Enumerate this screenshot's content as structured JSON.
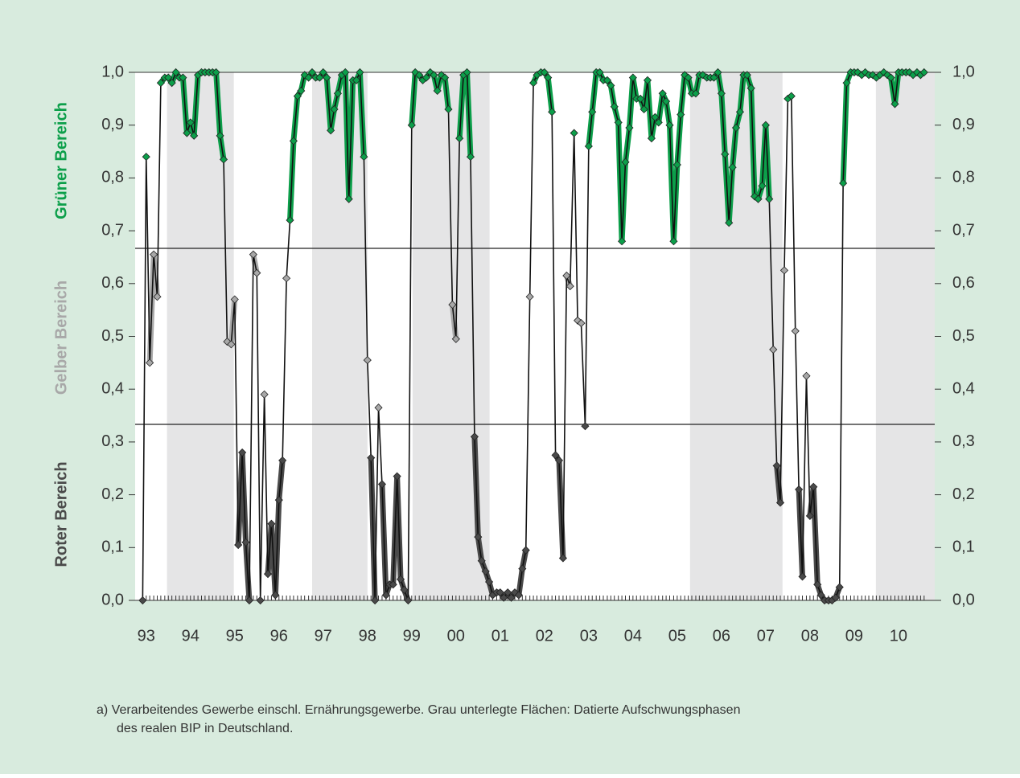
{
  "chart_data": {
    "type": "line",
    "y_labels": [
      "Roter Bereich",
      "Gelber Bereich",
      "Grüner Bereich"
    ],
    "zone_colors": [
      "#4a4a4a",
      "#a8a8a8",
      "#0c9f4a"
    ],
    "thresholds": [
      0.3333,
      0.6667
    ],
    "shaded_periods": [
      [
        1993.47,
        1994.98
      ],
      [
        1996.75,
        1998.0
      ],
      [
        1999.02,
        2000.76
      ],
      [
        2005.29,
        2007.38
      ],
      [
        2009.49,
        2010.82
      ]
    ],
    "xlim": [
      1992.75,
      2010.82
    ],
    "ylim": [
      0,
      1
    ],
    "xticks": [
      {
        "value": 1993,
        "label": "93"
      },
      {
        "value": 1994,
        "label": "94"
      },
      {
        "value": 1995,
        "label": "95"
      },
      {
        "value": 1996,
        "label": "96"
      },
      {
        "value": 1997,
        "label": "97"
      },
      {
        "value": 1998,
        "label": "98"
      },
      {
        "value": 1999,
        "label": "99"
      },
      {
        "value": 2000,
        "label": "00"
      },
      {
        "value": 2001,
        "label": "01"
      },
      {
        "value": 2002,
        "label": "02"
      },
      {
        "value": 2003,
        "label": "03"
      },
      {
        "value": 2004,
        "label": "04"
      },
      {
        "value": 2005,
        "label": "05"
      },
      {
        "value": 2006,
        "label": "06"
      },
      {
        "value": 2007,
        "label": "07"
      },
      {
        "value": 2008,
        "label": "08"
      },
      {
        "value": 2009,
        "label": "09"
      },
      {
        "value": 2010,
        "label": "10"
      }
    ],
    "yticks": [
      {
        "value": 0,
        "label": "0,0"
      },
      {
        "value": 0.1,
        "label": "0,1"
      },
      {
        "value": 0.2,
        "label": "0,2"
      },
      {
        "value": 0.3,
        "label": "0,3"
      },
      {
        "value": 0.4,
        "label": "0,4"
      },
      {
        "value": 0.5,
        "label": "0,5"
      },
      {
        "value": 0.6,
        "label": "0,6"
      },
      {
        "value": 0.7,
        "label": "0,7"
      },
      {
        "value": 0.8,
        "label": "0,8"
      },
      {
        "value": 0.9,
        "label": "0,9"
      },
      {
        "value": 1,
        "label": "1,0"
      }
    ],
    "x": [
      1992.92,
      1993.0,
      1993.08,
      1993.17,
      1993.25,
      1993.33,
      1993.42,
      1993.5,
      1993.58,
      1993.67,
      1993.75,
      1993.83,
      1993.92,
      1994.0,
      1994.08,
      1994.17,
      1994.25,
      1994.33,
      1994.42,
      1994.5,
      1994.58,
      1994.67,
      1994.75,
      1994.83,
      1994.92,
      1995.0,
      1995.08,
      1995.17,
      1995.25,
      1995.33,
      1995.42,
      1995.5,
      1995.58,
      1995.67,
      1995.75,
      1995.83,
      1995.92,
      1996.0,
      1996.08,
      1996.17,
      1996.25,
      1996.33,
      1996.42,
      1996.5,
      1996.58,
      1996.67,
      1996.75,
      1996.83,
      1996.92,
      1997.0,
      1997.08,
      1997.17,
      1997.25,
      1997.33,
      1997.42,
      1997.5,
      1997.58,
      1997.67,
      1997.75,
      1997.83,
      1997.92,
      1998.0,
      1998.08,
      1998.17,
      1998.25,
      1998.33,
      1998.42,
      1998.5,
      1998.58,
      1998.67,
      1998.75,
      1998.83,
      1998.92,
      1999.0,
      1999.08,
      1999.17,
      1999.25,
      1999.33,
      1999.42,
      1999.5,
      1999.58,
      1999.67,
      1999.75,
      1999.83,
      1999.92,
      2000.0,
      2000.08,
      2000.17,
      2000.25,
      2000.33,
      2000.42,
      2000.5,
      2000.58,
      2000.67,
      2000.75,
      2000.83,
      2000.92,
      2001.0,
      2001.08,
      2001.17,
      2001.25,
      2001.33,
      2001.42,
      2001.5,
      2001.58,
      2001.67,
      2001.75,
      2001.83,
      2001.92,
      2002.0,
      2002.08,
      2002.17,
      2002.25,
      2002.33,
      2002.42,
      2002.5,
      2002.58,
      2002.67,
      2002.75,
      2002.83,
      2002.92,
      2003.0,
      2003.08,
      2003.17,
      2003.25,
      2003.33,
      2003.42,
      2003.5,
      2003.58,
      2003.67,
      2003.75,
      2003.83,
      2003.92,
      2004.0,
      2004.08,
      2004.17,
      2004.25,
      2004.33,
      2004.42,
      2004.5,
      2004.58,
      2004.67,
      2004.75,
      2004.83,
      2004.92,
      2005.0,
      2005.08,
      2005.17,
      2005.25,
      2005.33,
      2005.42,
      2005.5,
      2005.58,
      2005.67,
      2005.75,
      2005.83,
      2005.92,
      2006.0,
      2006.08,
      2006.17,
      2006.25,
      2006.33,
      2006.42,
      2006.5,
      2006.58,
      2006.67,
      2006.75,
      2006.83,
      2006.92,
      2007.0,
      2007.08,
      2007.17,
      2007.25,
      2007.33,
      2007.42,
      2007.5,
      2007.58,
      2007.67,
      2007.75,
      2007.83,
      2007.92,
      2008.0,
      2008.08,
      2008.17,
      2008.25,
      2008.33,
      2008.42,
      2008.5,
      2008.58,
      2008.67,
      2008.75,
      2008.83,
      2008.92,
      2009.0,
      2009.08,
      2009.17,
      2009.25,
      2009.33,
      2009.42,
      2009.5,
      2009.58,
      2009.67,
      2009.75,
      2009.83,
      2009.92,
      2010.0,
      2010.08,
      2010.17,
      2010.25,
      2010.33,
      2010.42,
      2010.5,
      2010.58
    ],
    "values": [
      0.0,
      0.84,
      0.45,
      0.655,
      0.575,
      0.98,
      0.99,
      0.99,
      0.98,
      1.0,
      0.99,
      0.99,
      0.885,
      0.905,
      0.88,
      0.995,
      1.0,
      1.0,
      1.0,
      1.0,
      1.0,
      0.88,
      0.835,
      0.49,
      0.485,
      0.57,
      0.105,
      0.28,
      0.11,
      0.0,
      0.655,
      0.62,
      0.0,
      0.39,
      0.05,
      0.145,
      0.01,
      0.19,
      0.265,
      0.61,
      0.72,
      0.87,
      0.955,
      0.965,
      0.995,
      0.99,
      1.0,
      0.99,
      0.99,
      1.0,
      0.99,
      0.89,
      0.93,
      0.96,
      0.995,
      1.0,
      0.76,
      0.985,
      0.985,
      1.0,
      0.84,
      0.455,
      0.27,
      0.0,
      0.365,
      0.22,
      0.01,
      0.03,
      0.03,
      0.235,
      0.04,
      0.02,
      0.0,
      0.9,
      1.0,
      0.995,
      0.985,
      0.99,
      1.0,
      0.995,
      0.965,
      0.995,
      0.99,
      0.93,
      0.56,
      0.495,
      0.875,
      0.995,
      1.0,
      0.84,
      0.31,
      0.12,
      0.075,
      0.055,
      0.035,
      0.01,
      0.015,
      0.015,
      0.005,
      0.015,
      0.005,
      0.015,
      0.01,
      0.06,
      0.095,
      0.575,
      0.98,
      0.995,
      1.0,
      1.0,
      0.99,
      0.925,
      0.275,
      0.265,
      0.08,
      0.615,
      0.595,
      0.885,
      0.53,
      0.525,
      0.33,
      0.86,
      0.925,
      1.0,
      1.0,
      0.985,
      0.985,
      0.975,
      0.935,
      0.905,
      0.68,
      0.83,
      0.895,
      0.99,
      0.95,
      0.95,
      0.93,
      0.985,
      0.875,
      0.915,
      0.905,
      0.96,
      0.945,
      0.9,
      0.68,
      0.825,
      0.92,
      0.995,
      0.99,
      0.96,
      0.96,
      0.995,
      0.995,
      0.99,
      0.99,
      0.99,
      1.0,
      0.96,
      0.845,
      0.715,
      0.82,
      0.895,
      0.925,
      0.995,
      0.995,
      0.97,
      0.765,
      0.76,
      0.785,
      0.9,
      0.76,
      0.475,
      0.255,
      0.185,
      0.625,
      0.95,
      0.955,
      0.51,
      0.21,
      0.045,
      0.425,
      0.16,
      0.215,
      0.03,
      0.01,
      0.0,
      0.0,
      0.0,
      0.005,
      0.025,
      0.79,
      0.98,
      1.0,
      1.0,
      1.0,
      0.995,
      1.0,
      0.995,
      0.995,
      0.99,
      0.995,
      1.0,
      0.995,
      0.99,
      0.94,
      1.0,
      1.0,
      1.0,
      1.0,
      0.995,
      1.0,
      0.995,
      1.0
    ],
    "footnote": [
      "a) Verarbeitendes Gewerbe einschl. Ernährungsgewerbe. Grau unterlegte Flächen: Datierte Aufschwungsphasen",
      "des realen BIP in Deutschland."
    ]
  }
}
